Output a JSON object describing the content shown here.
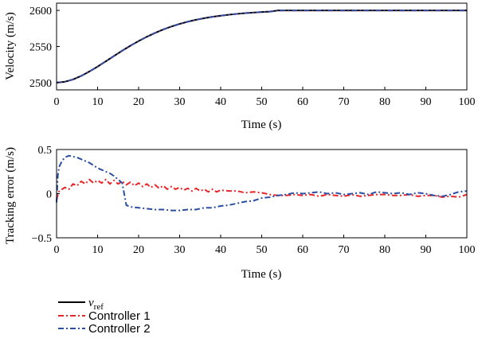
{
  "chart_data": [
    {
      "type": "line",
      "xlabel": "Time (s)",
      "ylabel": "Velocity (m/s)",
      "xlim": [
        0,
        100
      ],
      "ylim": [
        2490,
        2610
      ],
      "xticks": [
        "0",
        "10",
        "20",
        "30",
        "40",
        "50",
        "60",
        "70",
        "80",
        "90",
        "100"
      ],
      "yticks": [
        "2500",
        "2550",
        "2600"
      ],
      "grid": false,
      "series": [
        {
          "name": "v_ref",
          "color": "#000000",
          "style": "solid",
          "x": [
            0,
            2,
            4,
            6,
            8,
            10,
            12,
            14,
            16,
            18,
            20,
            22,
            24,
            26,
            28,
            30,
            32,
            34,
            36,
            38,
            40,
            42,
            44,
            46,
            48,
            50,
            52,
            54,
            60,
            70,
            80,
            90,
            100
          ],
          "y": [
            2500,
            2501.2,
            2504.4,
            2509.3,
            2515.4,
            2522.2,
            2529.5,
            2536.9,
            2544.2,
            2551.1,
            2557.6,
            2563.5,
            2568.8,
            2573.6,
            2577.7,
            2581.3,
            2584.4,
            2587.0,
            2589.2,
            2591.1,
            2592.7,
            2594.0,
            2595.2,
            2596.2,
            2597.0,
            2597.7,
            2598.3,
            2600,
            2600,
            2600,
            2600,
            2600,
            2600
          ]
        },
        {
          "name": "Controller 1",
          "color": "#e8262a",
          "style": "dash-dot",
          "x": [
            0,
            2,
            4,
            6,
            8,
            10,
            12,
            14,
            16,
            18,
            20,
            22,
            24,
            26,
            28,
            30,
            32,
            34,
            36,
            38,
            40,
            42,
            44,
            46,
            48,
            50,
            52,
            54,
            60,
            70,
            80,
            90,
            100
          ],
          "y": [
            2500,
            2501.2,
            2504.4,
            2509.3,
            2515.4,
            2522.2,
            2529.5,
            2536.9,
            2544.2,
            2551.1,
            2557.6,
            2563.5,
            2568.8,
            2573.6,
            2577.7,
            2581.3,
            2584.4,
            2587.0,
            2589.2,
            2591.1,
            2592.7,
            2594.0,
            2595.2,
            2596.2,
            2597.0,
            2597.7,
            2598.3,
            2600,
            2600,
            2600,
            2600,
            2600,
            2600
          ]
        },
        {
          "name": "Controller 2",
          "color": "#2b4ea3",
          "style": "dash-dot",
          "x": [
            0,
            2,
            4,
            6,
            8,
            10,
            12,
            14,
            16,
            18,
            20,
            22,
            24,
            26,
            28,
            30,
            32,
            34,
            36,
            38,
            40,
            42,
            44,
            46,
            48,
            50,
            52,
            54,
            60,
            70,
            80,
            90,
            100
          ],
          "y": [
            2500,
            2501.2,
            2504.4,
            2509.3,
            2515.4,
            2522.2,
            2529.5,
            2536.9,
            2544.2,
            2551.1,
            2557.6,
            2563.5,
            2568.8,
            2573.6,
            2577.7,
            2581.3,
            2584.4,
            2587.0,
            2589.2,
            2591.1,
            2592.7,
            2594.0,
            2595.2,
            2596.2,
            2597.0,
            2597.7,
            2598.3,
            2600,
            2600,
            2600,
            2600,
            2600,
            2600
          ]
        }
      ]
    },
    {
      "type": "line",
      "xlabel": "Time (s)",
      "ylabel": "Tracking error (m/s)",
      "xlim": [
        0,
        100
      ],
      "ylim": [
        -0.5,
        0.5
      ],
      "xticks": [
        "0",
        "10",
        "20",
        "30",
        "40",
        "50",
        "60",
        "70",
        "80",
        "90",
        "100"
      ],
      "yticks": [
        "0.5",
        "0",
        "−0.5"
      ],
      "grid": false,
      "series": [
        {
          "name": "Controller 1",
          "color": "#e8262a",
          "style": "dash-dot",
          "x": [
            0,
            0.5,
            1,
            2,
            3,
            4,
            5,
            6,
            7,
            8,
            9,
            10,
            11,
            12,
            13,
            14,
            15,
            16,
            17,
            18,
            19,
            20,
            21,
            22,
            23,
            24,
            25,
            26,
            27,
            28,
            29,
            30,
            31,
            32,
            33,
            34,
            35,
            36,
            37,
            38,
            39,
            40,
            42,
            44,
            46,
            48,
            50,
            52,
            54,
            56,
            58,
            60,
            62,
            64,
            66,
            68,
            70,
            72,
            74,
            76,
            78,
            80,
            82,
            84,
            86,
            88,
            90,
            92,
            94,
            96,
            98,
            100
          ],
          "y": [
            -0.07,
            0.02,
            0.04,
            0.07,
            0.05,
            0.11,
            0.09,
            0.14,
            0.11,
            0.16,
            0.12,
            0.15,
            0.12,
            0.16,
            0.11,
            0.15,
            0.11,
            0.14,
            0.1,
            0.13,
            0.09,
            0.12,
            0.08,
            0.11,
            0.07,
            0.1,
            0.06,
            0.09,
            0.05,
            0.08,
            0.05,
            0.07,
            0.04,
            0.06,
            0.03,
            0.06,
            0.03,
            0.05,
            0.02,
            0.05,
            0.02,
            0.04,
            0.03,
            0.03,
            0.01,
            0.02,
            0.01,
            -0.01,
            -0.02,
            -0.02,
            -0.01,
            -0.02,
            -0.01,
            -0.03,
            -0.01,
            -0.02,
            -0.03,
            -0.01,
            -0.03,
            -0.02,
            -0.01,
            -0.01,
            -0.02,
            -0.02,
            -0.01,
            -0.03,
            -0.02,
            -0.02,
            -0.04,
            -0.03,
            -0.04,
            -0.01
          ]
        },
        {
          "name": "Controller 2",
          "color": "#2b4ea3",
          "style": "dash-dot",
          "x": [
            0,
            0.3,
            0.6,
            1,
            1.5,
            2,
            3,
            4,
            5,
            6,
            7,
            8,
            9,
            10,
            11,
            12,
            13,
            14,
            15,
            16,
            17,
            18,
            20,
            22,
            24,
            26,
            28,
            30,
            32,
            34,
            36,
            38,
            40,
            42,
            44,
            46,
            48,
            50,
            52,
            54,
            56,
            58,
            60,
            62,
            64,
            66,
            68,
            70,
            72,
            74,
            76,
            78,
            80,
            82,
            84,
            86,
            88,
            90,
            92,
            94,
            96,
            98,
            100
          ],
          "y": [
            -0.1,
            0.2,
            0.3,
            0.34,
            0.38,
            0.41,
            0.43,
            0.42,
            0.41,
            0.39,
            0.37,
            0.35,
            0.32,
            0.29,
            0.27,
            0.25,
            0.23,
            0.2,
            0.16,
            0.12,
            -0.13,
            -0.15,
            -0.16,
            -0.17,
            -0.18,
            -0.18,
            -0.19,
            -0.19,
            -0.18,
            -0.18,
            -0.16,
            -0.16,
            -0.14,
            -0.13,
            -0.11,
            -0.09,
            -0.08,
            -0.05,
            -0.04,
            -0.02,
            -0.01,
            0.01,
            0.0,
            0.01,
            0.02,
            0.0,
            0.01,
            -0.01,
            0.0,
            0.01,
            -0.01,
            0.02,
            0.01,
            0.0,
            0.01,
            -0.01,
            0.01,
            0.0,
            -0.02,
            -0.03,
            -0.01,
            0.02,
            0.03
          ]
        }
      ]
    }
  ],
  "legend": {
    "placement": "bottom-left",
    "entries": [
      {
        "symbol": "v",
        "subscript": "ref",
        "color": "#000000",
        "style": "solid"
      },
      {
        "label": "Controller 1",
        "color": "#e8262a",
        "style": "dash-dot"
      },
      {
        "label": "Controller 2",
        "color": "#2b4ea3",
        "style": "dash-dot"
      }
    ]
  }
}
